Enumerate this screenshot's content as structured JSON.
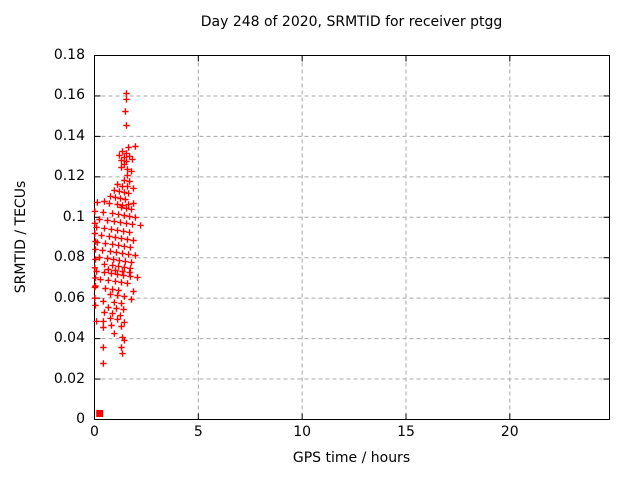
{
  "chart_data": {
    "type": "scatter",
    "title": "Day 248 of 2020, SRMTID for receiver ptgg",
    "xlabel": "GPS time / hours",
    "ylabel": "SRMTID / TECUs",
    "xlim": [
      0,
      24.8
    ],
    "ylim": [
      0,
      0.18
    ],
    "xticks": {
      "values": [
        0,
        5,
        10,
        15,
        20
      ],
      "labels": [
        "0",
        "5",
        "10",
        "15",
        "20"
      ]
    },
    "yticks": {
      "values": [
        0,
        0.02,
        0.04,
        0.06,
        0.08,
        0.1,
        0.12,
        0.14,
        0.16,
        0.18
      ],
      "labels": [
        "0",
        "0.02",
        "0.04",
        "0.06",
        "0.08",
        "0.1",
        "0.12",
        "0.14",
        "0.16",
        "0.18"
      ]
    },
    "grid": true,
    "grid_color": "#a8a8a8",
    "border_color": "#000000",
    "background": "#ffffff",
    "marker": "plus",
    "marker_color": "#ff0000",
    "legend": "none",
    "zero_cluster": {
      "x": 0.25,
      "y": 0.002,
      "note": "dense overlapping samples at ~0 TECUs rendered as a solid red block on the x-axis"
    },
    "series": [
      {
        "name": "SRMTID",
        "points": [
          [
            1.54,
            0.1612
          ],
          [
            1.54,
            0.1583
          ],
          [
            1.49,
            0.1523
          ],
          [
            1.54,
            0.1454
          ],
          [
            1.64,
            0.1345
          ],
          [
            1.97,
            0.135
          ],
          [
            1.35,
            0.1326
          ],
          [
            1.54,
            0.1316
          ],
          [
            1.2,
            0.1306
          ],
          [
            1.44,
            0.1296
          ],
          [
            1.69,
            0.1301
          ],
          [
            1.83,
            0.1286
          ],
          [
            1.3,
            0.1281
          ],
          [
            1.54,
            0.1276
          ],
          [
            1.44,
            0.1261
          ],
          [
            1.3,
            0.1246
          ],
          [
            1.59,
            0.1237
          ],
          [
            1.78,
            0.1227
          ],
          [
            1.59,
            0.1207
          ],
          [
            1.44,
            0.1182
          ],
          [
            1.69,
            0.1177
          ],
          [
            1.11,
            0.1162
          ],
          [
            1.35,
            0.1152
          ],
          [
            1.59,
            0.1152
          ],
          [
            1.88,
            0.1143
          ],
          [
            0.96,
            0.1133
          ],
          [
            1.2,
            0.1128
          ],
          [
            1.44,
            0.1123
          ],
          [
            1.64,
            0.1118
          ],
          [
            0.77,
            0.1103
          ],
          [
            1.01,
            0.1098
          ],
          [
            1.25,
            0.1093
          ],
          [
            1.49,
            0.1088
          ],
          [
            0.14,
            0.1073
          ],
          [
            0.48,
            0.1078
          ],
          [
            0.72,
            0.1068
          ],
          [
            1.11,
            0.1063
          ],
          [
            1.35,
            0.1058
          ],
          [
            1.64,
            0.1063
          ],
          [
            1.88,
            0.1068
          ],
          [
            1.3,
            0.1049
          ],
          [
            1.54,
            0.1044
          ],
          [
            1.78,
            0.1039
          ],
          [
            0.02,
            0.1029
          ],
          [
            0.43,
            0.1024
          ],
          [
            0.87,
            0.1019
          ],
          [
            1.16,
            0.1014
          ],
          [
            1.44,
            0.1009
          ],
          [
            1.69,
            0.1004
          ],
          [
            1.97,
            0.0999
          ],
          [
            0.24,
            0.0989
          ],
          [
            0.63,
            0.0984
          ],
          [
            0.96,
            0.0979
          ],
          [
            1.25,
            0.0974
          ],
          [
            1.54,
            0.0969
          ],
          [
            1.83,
            0.0965
          ],
          [
            2.22,
            0.096
          ],
          [
            0.1,
            0.095
          ],
          [
            0.48,
            0.0945
          ],
          [
            0.82,
            0.094
          ],
          [
            1.11,
            0.0935
          ],
          [
            1.4,
            0.093
          ],
          [
            1.69,
            0.0925
          ],
          [
            0.02,
            0.092
          ],
          [
            0.34,
            0.091
          ],
          [
            0.72,
            0.0905
          ],
          [
            1.01,
            0.09
          ],
          [
            1.3,
            0.0895
          ],
          [
            1.59,
            0.089
          ],
          [
            1.88,
            0.0885
          ],
          [
            0.14,
            0.0875
          ],
          [
            0.53,
            0.087
          ],
          [
            0.87,
            0.0866
          ],
          [
            1.16,
            0.0861
          ],
          [
            1.44,
            0.0856
          ],
          [
            1.73,
            0.0851
          ],
          [
            0.05,
            0.0841
          ],
          [
            0.39,
            0.0836
          ],
          [
            0.77,
            0.0831
          ],
          [
            1.06,
            0.0826
          ],
          [
            1.35,
            0.0821
          ],
          [
            1.64,
            0.0816
          ],
          [
            1.97,
            0.0811
          ],
          [
            0.24,
            0.0801
          ],
          [
            0.63,
            0.0796
          ],
          [
            0.05,
            0.0791
          ],
          [
            0.92,
            0.0791
          ],
          [
            1.2,
            0.0786
          ],
          [
            1.49,
            0.0781
          ],
          [
            1.78,
            0.0777
          ],
          [
            0.48,
            0.0767
          ],
          [
            0.87,
            0.0762
          ],
          [
            1.16,
            0.0757
          ],
          [
            1.44,
            0.0752
          ],
          [
            1.73,
            0.0747
          ],
          [
            0.67,
            0.0742
          ],
          [
            1.01,
            0.0737
          ],
          [
            1.35,
            0.0732
          ],
          [
            1.69,
            0.0727
          ],
          [
            0.1,
            0.0732
          ],
          [
            0.48,
            0.0727
          ],
          [
            0.82,
            0.0722
          ],
          [
            1.11,
            0.0717
          ],
          [
            1.4,
            0.0712
          ],
          [
            1.73,
            0.0707
          ],
          [
            2.07,
            0.0702
          ],
          [
            0.29,
            0.0692
          ],
          [
            0.67,
            0.0688
          ],
          [
            1.01,
            0.0683
          ],
          [
            1.3,
            0.0678
          ],
          [
            1.59,
            0.0673
          ],
          [
            0.02,
            0.0653
          ],
          [
            0.53,
            0.0648
          ],
          [
            0.87,
            0.0643
          ],
          [
            1.16,
            0.0638
          ],
          [
            1.88,
            0.0633
          ],
          [
            0.77,
            0.0618
          ],
          [
            1.11,
            0.0613
          ],
          [
            1.44,
            0.0608
          ],
          [
            1.78,
            0.0594
          ],
          [
            0.43,
            0.0584
          ],
          [
            0.96,
            0.0579
          ],
          [
            1.3,
            0.0574
          ],
          [
            0.05,
            0.0564
          ],
          [
            0.67,
            0.0554
          ],
          [
            1.06,
            0.0549
          ],
          [
            1.4,
            0.0544
          ],
          [
            0.48,
            0.0529
          ],
          [
            0.87,
            0.0524
          ],
          [
            1.25,
            0.0514
          ],
          [
            0.77,
            0.05
          ],
          [
            1.11,
            0.0495
          ],
          [
            0.1,
            0.0485
          ],
          [
            0.43,
            0.0485
          ],
          [
            1.44,
            0.048
          ],
          [
            0.82,
            0.0465
          ],
          [
            0.43,
            0.0455
          ],
          [
            1.3,
            0.046
          ],
          [
            0.96,
            0.0425
          ],
          [
            1.35,
            0.0406
          ],
          [
            1.44,
            0.0391
          ],
          [
            0.43,
            0.0356
          ],
          [
            1.3,
            0.0356
          ],
          [
            1.35,
            0.0326
          ],
          [
            0.43,
            0.0277
          ],
          [
            0.02,
            0.097
          ],
          [
            0.05,
            0.088
          ],
          [
            0.02,
            0.075
          ],
          [
            0.05,
            0.07
          ],
          [
            0.02,
            0.06
          ],
          [
            0.05,
            0.066
          ]
        ]
      }
    ]
  }
}
